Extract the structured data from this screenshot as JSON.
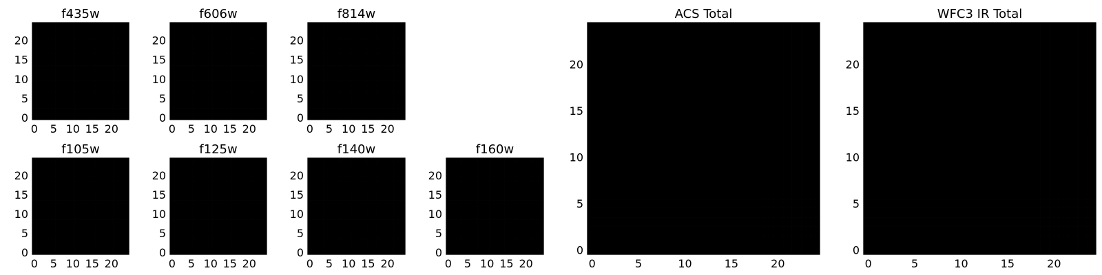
{
  "figure": {
    "colormap": "viridis",
    "axis_color": "#000000",
    "background": "#ffffff"
  },
  "chart_data": [
    {
      "type": "heatmap",
      "title": "f435w",
      "size": 25,
      "xlim": [
        0,
        24
      ],
      "ylim": [
        0,
        24
      ],
      "xticks": [
        "0",
        "5",
        "10",
        "15",
        "20"
      ],
      "yticks": [
        "0",
        "5",
        "10",
        "15",
        "20"
      ]
    },
    {
      "type": "heatmap",
      "title": "f606w",
      "size": 25,
      "xlim": [
        0,
        24
      ],
      "ylim": [
        0,
        24
      ],
      "xticks": [
        "0",
        "5",
        "10",
        "15",
        "20"
      ],
      "yticks": [
        "0",
        "5",
        "10",
        "15",
        "20"
      ]
    },
    {
      "type": "heatmap",
      "title": "f814w",
      "size": 25,
      "xlim": [
        0,
        24
      ],
      "ylim": [
        0,
        24
      ],
      "xticks": [
        "0",
        "5",
        "10",
        "15",
        "20"
      ],
      "yticks": [
        "0",
        "5",
        "10",
        "15",
        "20"
      ]
    },
    {
      "type": "heatmap",
      "title": "f105w",
      "size": 25,
      "xlim": [
        0,
        24
      ],
      "ylim": [
        0,
        24
      ],
      "xticks": [
        "0",
        "5",
        "10",
        "15",
        "20"
      ],
      "yticks": [
        "0",
        "5",
        "10",
        "15",
        "20"
      ]
    },
    {
      "type": "heatmap",
      "title": "f125w",
      "size": 25,
      "xlim": [
        0,
        24
      ],
      "ylim": [
        0,
        24
      ],
      "xticks": [
        "0",
        "5",
        "10",
        "15",
        "20"
      ],
      "yticks": [
        "0",
        "5",
        "10",
        "15",
        "20"
      ]
    },
    {
      "type": "heatmap",
      "title": "f140w",
      "size": 25,
      "xlim": [
        0,
        24
      ],
      "ylim": [
        0,
        24
      ],
      "xticks": [
        "0",
        "5",
        "10",
        "15",
        "20"
      ],
      "yticks": [
        "0",
        "5",
        "10",
        "15",
        "20"
      ]
    },
    {
      "type": "heatmap",
      "title": "f160w",
      "size": 25,
      "xlim": [
        0,
        24
      ],
      "ylim": [
        0,
        24
      ],
      "xticks": [
        "0",
        "5",
        "10",
        "15",
        "20"
      ],
      "yticks": [
        "0",
        "5",
        "10",
        "15",
        "20"
      ]
    },
    {
      "type": "heatmap",
      "title": "ACS Total",
      "size": 25,
      "xlim": [
        0,
        24
      ],
      "ylim": [
        0,
        24
      ],
      "xticks": [
        "0",
        "5",
        "10",
        "15",
        "20"
      ],
      "yticks": [
        "0",
        "5",
        "10",
        "15",
        "20"
      ]
    },
    {
      "type": "heatmap",
      "title": "WFC3 IR Total",
      "size": 25,
      "xlim": [
        0,
        24
      ],
      "ylim": [
        0,
        24
      ],
      "xticks": [
        "0",
        "5",
        "10",
        "15",
        "20"
      ],
      "yticks": [
        "0",
        "5",
        "10",
        "15",
        "20"
      ]
    }
  ]
}
